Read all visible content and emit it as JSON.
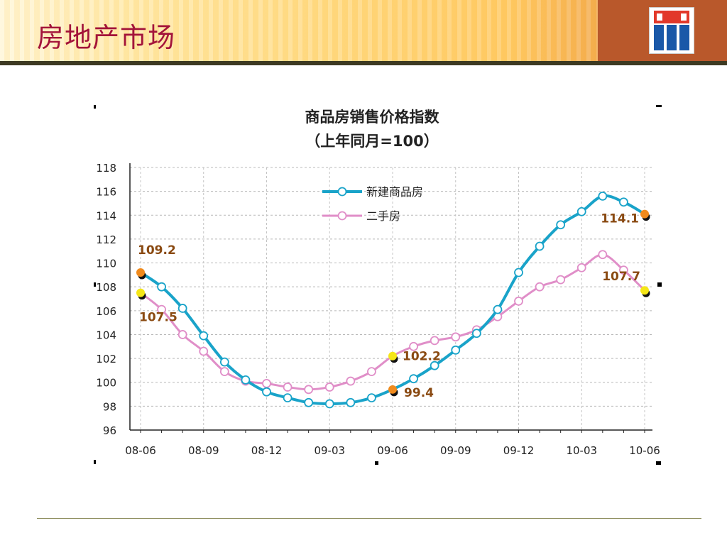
{
  "slide": {
    "title": "房地产市场"
  },
  "chart_data": {
    "type": "line",
    "title": "商品房销售价格指数",
    "subtitle": "（上年同月=100）",
    "xlabel": "",
    "ylabel": "",
    "ylim": [
      96,
      118
    ],
    "yticks": [
      96,
      98,
      100,
      102,
      104,
      106,
      108,
      110,
      112,
      114,
      116,
      118
    ],
    "x_tick_labels": [
      "08-06",
      "08-09",
      "08-12",
      "09-03",
      "09-06",
      "09-09",
      "09-12",
      "10-03",
      "10-06"
    ],
    "x": [
      "08-06",
      "08-07",
      "08-08",
      "08-09",
      "08-10",
      "08-11",
      "08-12",
      "09-01",
      "09-02",
      "09-03",
      "09-04",
      "09-05",
      "09-06",
      "09-07",
      "09-08",
      "09-09",
      "09-10",
      "09-11",
      "09-12",
      "10-01",
      "10-02",
      "10-03",
      "10-04",
      "10-05",
      "10-06"
    ],
    "grid": true,
    "legend_position": "top-center",
    "series": [
      {
        "name": "新建商品房",
        "color": "#19a3c9",
        "values": [
          109.2,
          108.0,
          106.2,
          103.9,
          101.7,
          100.2,
          99.2,
          98.7,
          98.3,
          98.2,
          98.3,
          98.7,
          99.4,
          100.3,
          101.4,
          102.7,
          104.1,
          106.1,
          109.2,
          111.4,
          113.2,
          114.3,
          115.6,
          115.1,
          114.1
        ],
        "labels": [
          {
            "x": "08-06",
            "text": "109.2"
          },
          {
            "x": "09-06",
            "text": "99.4"
          },
          {
            "x": "10-06",
            "text": "114.1"
          }
        ]
      },
      {
        "name": "二手房",
        "color": "#e08ec8",
        "values": [
          107.5,
          106.1,
          104.0,
          102.6,
          100.9,
          100.1,
          99.9,
          99.6,
          99.4,
          99.6,
          100.1,
          100.9,
          102.2,
          103.0,
          103.5,
          103.8,
          104.4,
          105.5,
          106.8,
          108.0,
          108.6,
          109.6,
          110.7,
          109.4,
          107.7
        ],
        "labels": [
          {
            "x": "08-06",
            "text": "107.5"
          },
          {
            "x": "09-06",
            "text": "102.2"
          },
          {
            "x": "10-06",
            "text": "107.7"
          }
        ]
      }
    ]
  }
}
